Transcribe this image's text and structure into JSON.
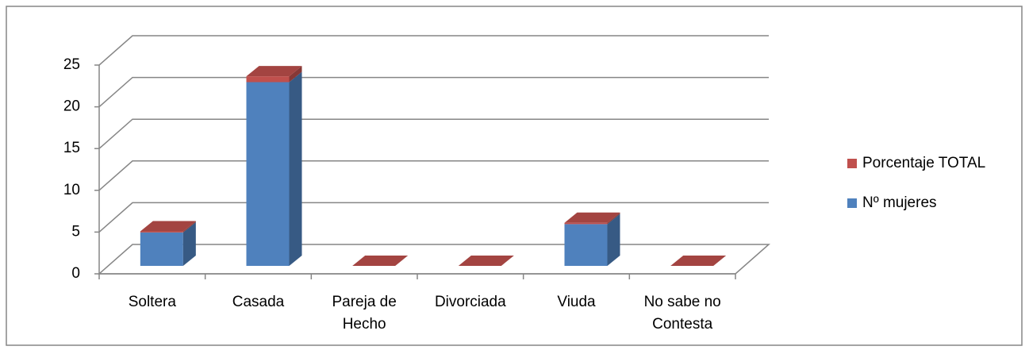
{
  "chart_data": {
    "type": "bar3d_stacked",
    "categories": [
      "Soltera",
      "Casada",
      "Pareja de Hecho",
      "Divorciada",
      "Viuda",
      "No sabe no Contesta"
    ],
    "series": [
      {
        "name": "Nº mujeres",
        "color": "#4f81bd",
        "values": [
          4,
          22,
          0,
          0,
          5,
          0
        ]
      },
      {
        "name": "Porcentaje TOTAL",
        "color": "#c0504d",
        "values": [
          0.13,
          0.71,
          0,
          0,
          0.16,
          0
        ]
      }
    ],
    "ylim": [
      0,
      25
    ],
    "yticks": [
      0,
      5,
      10,
      15,
      20,
      25
    ],
    "grid": true,
    "legend": "right"
  }
}
